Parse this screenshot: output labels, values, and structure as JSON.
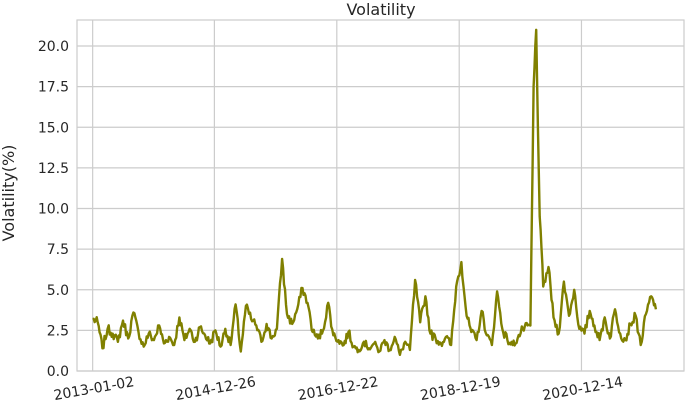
{
  "chart_data": {
    "type": "line",
    "title": "Volatility",
    "xlabel": "",
    "ylabel": "Volatility(%)",
    "ylim": [
      0,
      21.6
    ],
    "yticks": [
      0.0,
      2.5,
      5.0,
      7.5,
      10.0,
      12.5,
      15.0,
      17.5,
      20.0
    ],
    "ytick_labels": [
      "0.0",
      "2.5",
      "5.0",
      "7.5",
      "10.0",
      "12.5",
      "15.0",
      "17.5",
      "20.0"
    ],
    "xticks": [
      "2013-01-02",
      "2014-12-26",
      "2016-12-22",
      "2018-12-19",
      "2020-12-14"
    ],
    "xlim": [
      "2012-10-01",
      "2022-08-15"
    ],
    "grid": true,
    "line_color": "#808000",
    "series": [
      {
        "name": "",
        "points": [
          [
            "2013-01-02",
            3.2
          ],
          [
            "2013-02-01",
            3.0
          ],
          [
            "2013-03-01",
            1.4
          ],
          [
            "2013-04-01",
            2.6
          ],
          [
            "2013-05-01",
            2.3
          ],
          [
            "2013-06-01",
            1.8
          ],
          [
            "2013-07-01",
            3.1
          ],
          [
            "2013-08-01",
            2.0
          ],
          [
            "2013-09-01",
            3.6
          ],
          [
            "2013-10-01",
            2.4
          ],
          [
            "2013-11-01",
            1.5
          ],
          [
            "2013-12-01",
            2.3
          ],
          [
            "2014-01-01",
            1.9
          ],
          [
            "2014-02-01",
            2.8
          ],
          [
            "2014-03-01",
            1.7
          ],
          [
            "2014-04-01",
            2.1
          ],
          [
            "2014-05-01",
            1.6
          ],
          [
            "2014-06-01",
            3.3
          ],
          [
            "2014-07-01",
            1.9
          ],
          [
            "2014-08-01",
            2.6
          ],
          [
            "2014-09-01",
            1.8
          ],
          [
            "2014-10-01",
            2.7
          ],
          [
            "2014-11-01",
            2.2
          ],
          [
            "2014-12-01",
            1.7
          ],
          [
            "2015-01-01",
            2.5
          ],
          [
            "2015-02-01",
            1.5
          ],
          [
            "2015-03-01",
            2.6
          ],
          [
            "2015-04-01",
            1.6
          ],
          [
            "2015-05-01",
            4.1
          ],
          [
            "2015-06-01",
            1.2
          ],
          [
            "2015-07-01",
            4.0
          ],
          [
            "2015-08-01",
            3.2
          ],
          [
            "2015-09-01",
            2.8
          ],
          [
            "2015-10-01",
            1.8
          ],
          [
            "2015-11-01",
            2.9
          ],
          [
            "2015-12-01",
            2.0
          ],
          [
            "2016-01-01",
            2.6
          ],
          [
            "2016-02-01",
            6.9
          ],
          [
            "2016-03-01",
            3.5
          ],
          [
            "2016-04-01",
            2.9
          ],
          [
            "2016-05-01",
            3.8
          ],
          [
            "2016-06-01",
            5.1
          ],
          [
            "2016-07-01",
            4.2
          ],
          [
            "2016-08-01",
            2.4
          ],
          [
            "2016-09-01",
            2.0
          ],
          [
            "2016-10-01",
            2.5
          ],
          [
            "2016-11-01",
            4.2
          ],
          [
            "2016-12-01",
            2.2
          ],
          [
            "2017-01-01",
            1.9
          ],
          [
            "2017-02-01",
            1.6
          ],
          [
            "2017-03-01",
            2.4
          ],
          [
            "2017-04-01",
            1.5
          ],
          [
            "2017-05-01",
            1.3
          ],
          [
            "2017-06-01",
            1.8
          ],
          [
            "2017-07-01",
            1.4
          ],
          [
            "2017-08-01",
            1.7
          ],
          [
            "2017-09-01",
            1.2
          ],
          [
            "2017-10-01",
            1.9
          ],
          [
            "2017-11-01",
            1.3
          ],
          [
            "2017-12-01",
            2.1
          ],
          [
            "2018-01-01",
            1.0
          ],
          [
            "2018-02-01",
            1.8
          ],
          [
            "2018-03-01",
            1.3
          ],
          [
            "2018-04-01",
            5.6
          ],
          [
            "2018-05-01",
            3.0
          ],
          [
            "2018-06-01",
            4.6
          ],
          [
            "2018-07-01",
            2.3
          ],
          [
            "2018-08-01",
            2.0
          ],
          [
            "2018-09-01",
            1.7
          ],
          [
            "2018-10-01",
            2.1
          ],
          [
            "2018-11-01",
            1.6
          ],
          [
            "2018-12-01",
            5.2
          ],
          [
            "2019-01-01",
            6.7
          ],
          [
            "2019-02-01",
            3.4
          ],
          [
            "2019-03-01",
            2.4
          ],
          [
            "2019-04-01",
            1.9
          ],
          [
            "2019-05-01",
            3.7
          ],
          [
            "2019-06-01",
            2.2
          ],
          [
            "2019-07-01",
            1.6
          ],
          [
            "2019-08-01",
            4.9
          ],
          [
            "2019-09-01",
            2.6
          ],
          [
            "2019-10-01",
            1.9
          ],
          [
            "2019-11-01",
            1.6
          ],
          [
            "2019-12-01",
            2.0
          ],
          [
            "2020-01-01",
            2.6
          ],
          [
            "2020-02-15",
            2.8
          ],
          [
            "2020-03-05",
            17.5
          ],
          [
            "2020-03-20",
            21.0
          ],
          [
            "2020-04-10",
            9.5
          ],
          [
            "2020-05-01",
            5.2
          ],
          [
            "2020-06-01",
            6.4
          ],
          [
            "2020-07-01",
            3.3
          ],
          [
            "2020-08-01",
            2.3
          ],
          [
            "2020-09-01",
            5.5
          ],
          [
            "2020-10-01",
            3.4
          ],
          [
            "2020-11-01",
            5.0
          ],
          [
            "2020-12-01",
            2.6
          ],
          [
            "2021-01-01",
            2.3
          ],
          [
            "2021-02-01",
            3.7
          ],
          [
            "2021-03-01",
            2.8
          ],
          [
            "2021-04-01",
            1.9
          ],
          [
            "2021-05-01",
            3.3
          ],
          [
            "2021-06-01",
            2.0
          ],
          [
            "2021-07-01",
            3.8
          ],
          [
            "2021-08-01",
            2.3
          ],
          [
            "2021-09-01",
            1.9
          ],
          [
            "2021-10-01",
            2.9
          ],
          [
            "2021-11-01",
            3.4
          ],
          [
            "2021-12-01",
            1.6
          ],
          [
            "2022-01-01",
            3.5
          ],
          [
            "2022-02-01",
            4.6
          ],
          [
            "2022-03-01",
            3.8
          ]
        ]
      }
    ]
  }
}
